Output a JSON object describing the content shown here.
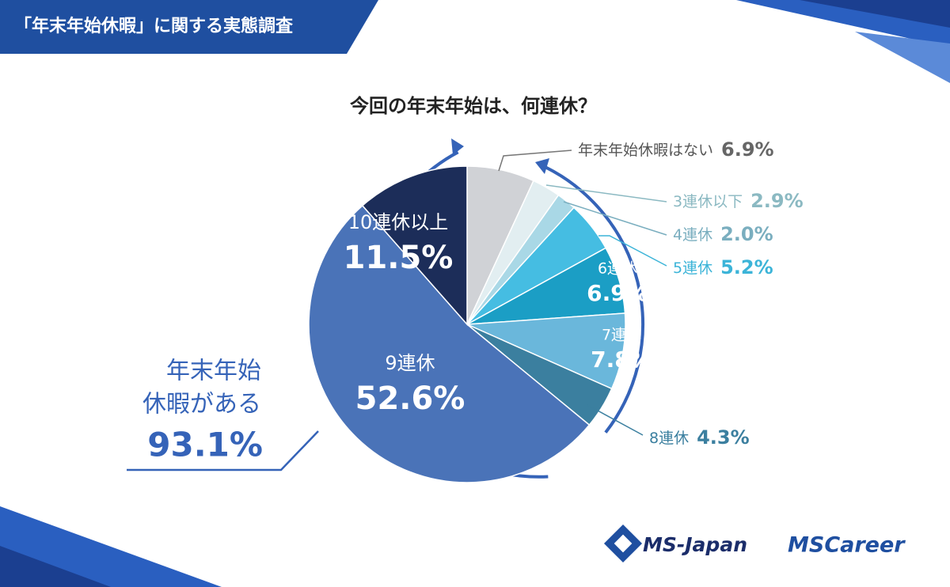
{
  "header": {
    "title": "「年末年始休暇」に関する実態調査"
  },
  "chart_data": {
    "type": "pie",
    "title": "今回の年末年始は、何連休？",
    "categories": [
      "年末年始休暇はない",
      "3連休以下",
      "4連休",
      "5連休",
      "6連休",
      "7連休",
      "8連休",
      "9連休",
      "10連休以上"
    ],
    "values": [
      6.9,
      2.9,
      2.0,
      5.2,
      6.9,
      7.8,
      4.3,
      52.6,
      11.5
    ],
    "value_labels": [
      "6.9%",
      "2.9%",
      "2.0%",
      "5.2%",
      "6.9%",
      "7.8%",
      "4.3%",
      "52.6%",
      "11.5%"
    ],
    "colors": [
      "#d0d2d6",
      "#e2eef1",
      "#a9d8e6",
      "#45bde2",
      "#1b9ec5",
      "#6ab7db",
      "#3b7f9f",
      "#4a73b8",
      "#1c2d59"
    ],
    "annotation": {
      "lines": [
        "年末年始",
        "休暇がある"
      ],
      "value": "93.1%"
    }
  },
  "footer": {
    "logos": [
      "MS-Japan",
      "MSCareer"
    ]
  }
}
